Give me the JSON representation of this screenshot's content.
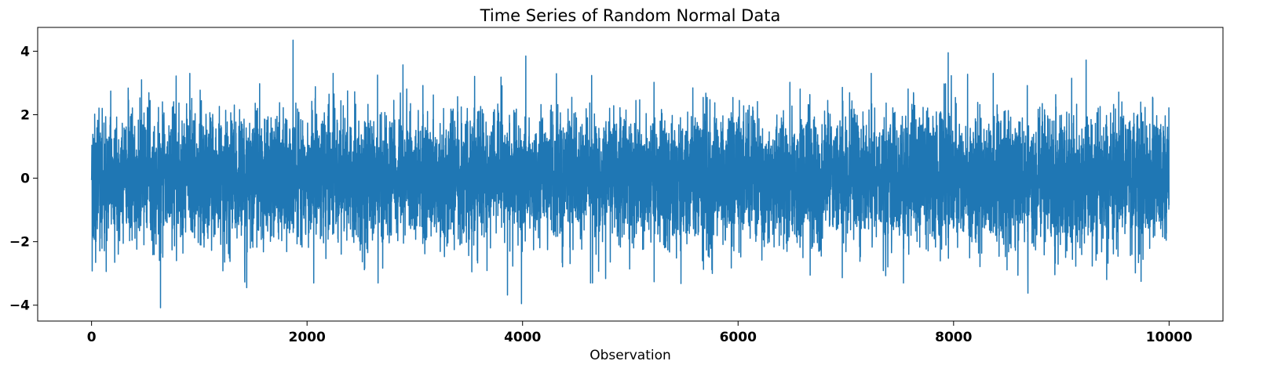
{
  "chart_data": {
    "type": "line",
    "title": "Time Series of Random Normal Data",
    "xlabel": "Observation",
    "ylabel": "",
    "xlim": [
      -500,
      10500
    ],
    "ylim": [
      -4.5,
      4.75
    ],
    "x_ticks": [
      0,
      2000,
      4000,
      6000,
      8000,
      10000
    ],
    "x_tick_labels": [
      "0",
      "2000",
      "4000",
      "6000",
      "8000",
      "10000"
    ],
    "y_ticks": [
      4,
      2,
      0,
      -2,
      -4
    ],
    "y_tick_labels": [
      "4",
      "2",
      "0",
      "−2",
      "−4"
    ],
    "grid": false,
    "series": [
      {
        "color": "#1f77b4",
        "n_points": 10000,
        "distribution": "standard normal",
        "mean": 0,
        "std": 1,
        "notable_points": [
          {
            "x": 1870,
            "y": 4.35
          },
          {
            "x": 4030,
            "y": 3.85
          },
          {
            "x": 7950,
            "y": 3.95
          },
          {
            "x": 9230,
            "y": 3.72
          },
          {
            "x": 2890,
            "y": 3.57
          },
          {
            "x": 640,
            "y": -4.08
          },
          {
            "x": 3860,
            "y": -3.68
          },
          {
            "x": 3990,
            "y": -3.95
          },
          {
            "x": 8690,
            "y": -3.62
          },
          {
            "x": 1440,
            "y": -3.45
          },
          {
            "x": 5470,
            "y": -3.32
          },
          {
            "x": 9740,
            "y": -3.25
          }
        ]
      }
    ]
  }
}
